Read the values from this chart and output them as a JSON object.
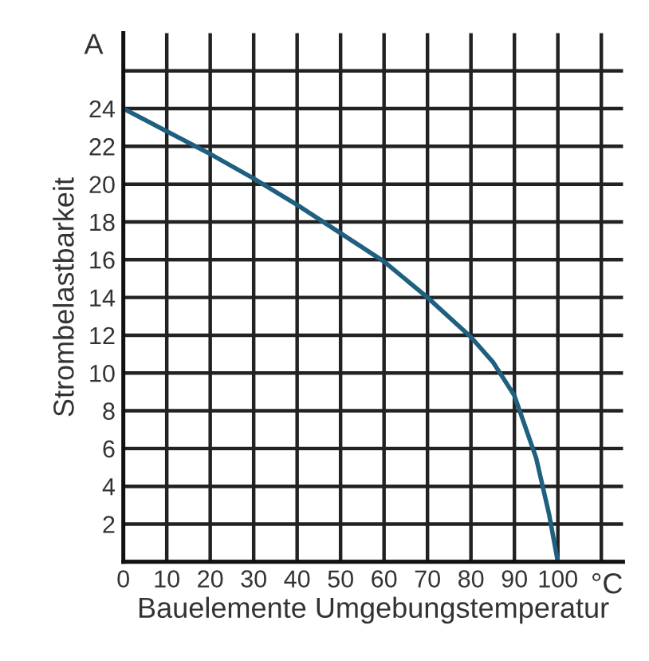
{
  "chart_data": {
    "type": "line",
    "xlabel": "Bauelemente Umgebungstemperatur",
    "ylabel": "Strombelastbarkeit",
    "annotations": [
      "A",
      "°C"
    ],
    "x": [
      0,
      10,
      20,
      30,
      40,
      50,
      60,
      70,
      80,
      85,
      90,
      95,
      98,
      100
    ],
    "series": [
      {
        "color": "#1f5f80",
        "values": [
          24,
          22.8,
          21.6,
          20.3,
          18.9,
          17.4,
          15.9,
          14,
          11.9,
          10.6,
          8.8,
          5.5,
          2.5,
          0
        ]
      }
    ],
    "xlim": [
      0,
      115
    ],
    "ylim": [
      0,
      28
    ],
    "xticks": [
      0,
      10,
      20,
      30,
      40,
      50,
      60,
      70,
      80,
      90,
      100,
      {
        "value": 110,
        "label": null
      }
    ],
    "yticks": [
      {
        "value": 0,
        "label": null
      },
      2,
      4,
      6,
      8,
      10,
      12,
      14,
      16,
      18,
      20,
      22,
      24,
      {
        "value": 26,
        "label": null
      }
    ],
    "grid": true,
    "marker": "none",
    "line_style": "solid"
  }
}
